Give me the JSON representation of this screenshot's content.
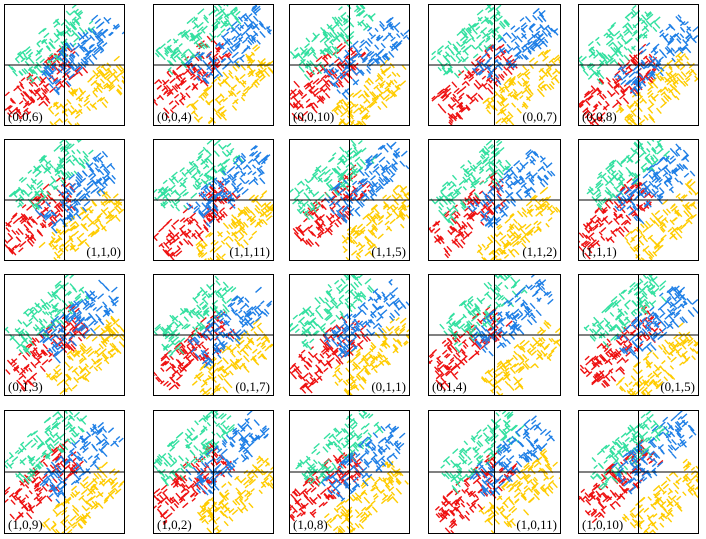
{
  "colors": {
    "red": "#ee1111",
    "yellow": "#ffcc00",
    "blue": "#1e7fe6",
    "green": "#33e0a0"
  },
  "rows": [
    {
      "panels": [
        {
          "label": "(0,0,6)",
          "label_pos": "left"
        },
        {
          "label": "(0,0,4)",
          "label_pos": "left"
        },
        {
          "label": "(0,0,10)",
          "label_pos": "left"
        },
        {
          "label": "(0,0,7)",
          "label_pos": "right"
        },
        {
          "label": "(0,0,8)",
          "label_pos": "left"
        }
      ]
    },
    {
      "panels": [
        {
          "label": "(1,1,0)",
          "label_pos": "right"
        },
        {
          "label": "(1,1,11)",
          "label_pos": "right"
        },
        {
          "label": "(1,1,5)",
          "label_pos": "right"
        },
        {
          "label": "(1,1,2)",
          "label_pos": "right"
        },
        {
          "label": "(1,1,1)",
          "label_pos": "left"
        }
      ]
    },
    {
      "panels": [
        {
          "label": "(0,1,3)",
          "label_pos": "left"
        },
        {
          "label": "(0,1,7)",
          "label_pos": "right"
        },
        {
          "label": "(0,1,1)",
          "label_pos": "right"
        },
        {
          "label": "(0,1,4)",
          "label_pos": "left"
        },
        {
          "label": "(0,1,5)",
          "label_pos": "right"
        }
      ]
    },
    {
      "panels": [
        {
          "label": "(1,0,9)",
          "label_pos": "left"
        },
        {
          "label": "(1,0,2)",
          "label_pos": "left"
        },
        {
          "label": "(1,0,8)",
          "label_pos": "left"
        },
        {
          "label": "(1,0,11)",
          "label_pos": "right"
        },
        {
          "label": "(1,0,10)",
          "label_pos": "left"
        }
      ]
    }
  ]
}
